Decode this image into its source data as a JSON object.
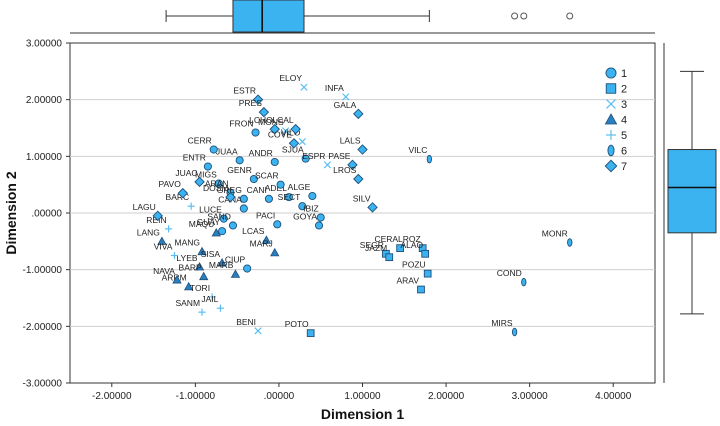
{
  "chart_data": {
    "type": "scatter",
    "title": "",
    "xlabel": "Dimension 1",
    "ylabel": "Dimension 2",
    "xlim": [
      -2.5,
      4.5
    ],
    "ylim": [
      -3.0,
      3.0
    ],
    "x_ticks": [
      -2.0,
      -1.0,
      0.0,
      1.0,
      2.0,
      3.0,
      4.0
    ],
    "y_ticks": [
      -3.0,
      -2.0,
      -1.0,
      0.0,
      1.0,
      2.0,
      3.0
    ],
    "x_tick_labels": [
      "-2.00000",
      "-1.00000",
      ".00000",
      "1.00000",
      "2.00000",
      "3.00000",
      "4.00000"
    ],
    "y_tick_labels": [
      "-3.00000",
      "-2.00000",
      "-1.00000",
      ".00000",
      "1.00000",
      "2.00000",
      "3.00000"
    ],
    "grid": "horizontal",
    "legend_position": "top-right",
    "colors": {
      "fill": "#3bb3f0",
      "stroke": "#1f4f7a",
      "cross": "#5bbef0",
      "plot_bg": "#ffffff",
      "grid": "#cfcfcf",
      "box": "#3bb3f0"
    },
    "series": [
      {
        "name": "1",
        "marker": "circle",
        "points": [
          {
            "label": "FRON",
            "x": -0.28,
            "y": 1.42
          },
          {
            "label": "CERR",
            "x": -0.78,
            "y": 1.12
          },
          {
            "label": "JUAA",
            "x": -0.47,
            "y": 0.93
          },
          {
            "label": "ENTR",
            "x": -0.85,
            "y": 0.82
          },
          {
            "label": "ANDR",
            "x": -0.05,
            "y": 0.9
          },
          {
            "label": "SJUA",
            "x": 0.32,
            "y": 0.96
          },
          {
            "label": "GENR",
            "x": -0.3,
            "y": 0.6
          },
          {
            "label": "MIGS",
            "x": -0.72,
            "y": 0.52
          },
          {
            "label": "ARAN",
            "x": -0.58,
            "y": 0.36
          },
          {
            "label": "GREG",
            "x": -0.42,
            "y": 0.25
          },
          {
            "label": "CANI",
            "x": -0.12,
            "y": 0.25
          },
          {
            "label": "ADEL",
            "x": 0.12,
            "y": 0.28
          },
          {
            "label": "CANA",
            "x": -0.42,
            "y": 0.08
          },
          {
            "label": "SCAR",
            "x": 0.02,
            "y": 0.5
          },
          {
            "label": "ALGE",
            "x": 0.4,
            "y": 0.3
          },
          {
            "label": "SECT",
            "x": 0.28,
            "y": 0.12
          },
          {
            "label": "LUCE",
            "x": -0.66,
            "y": -0.1
          },
          {
            "label": "SAND",
            "x": -0.55,
            "y": -0.22
          },
          {
            "label": "PACI",
            "x": -0.02,
            "y": -0.2
          },
          {
            "label": "IBIZ",
            "x": 0.5,
            "y": -0.08
          },
          {
            "label": "GUAY",
            "x": -0.68,
            "y": -0.32
          },
          {
            "label": "GOYA",
            "x": 0.48,
            "y": -0.22
          },
          {
            "label": "CIUP",
            "x": -0.38,
            "y": -0.98
          }
        ]
      },
      {
        "name": "2",
        "marker": "square",
        "points": [
          {
            "label": "SEGR",
            "x": 1.28,
            "y": -0.72
          },
          {
            "label": "CERA",
            "x": 1.45,
            "y": -0.62
          },
          {
            "label": "JAZM",
            "x": 1.32,
            "y": -0.78
          },
          {
            "label": "LROZ",
            "x": 1.72,
            "y": -0.62
          },
          {
            "label": "ALAO",
            "x": 1.75,
            "y": -0.72
          },
          {
            "label": "POZU",
            "x": 1.78,
            "y": -1.07
          },
          {
            "label": "ARAV",
            "x": 1.7,
            "y": -1.35
          },
          {
            "label": "POTO",
            "x": 0.38,
            "y": -2.12
          }
        ]
      },
      {
        "name": "3",
        "marker": "x",
        "points": [
          {
            "label": "ELOY",
            "x": 0.3,
            "y": 2.22
          },
          {
            "label": "INFA",
            "x": 0.8,
            "y": 2.05
          },
          {
            "label": "MONS",
            "x": 0.08,
            "y": 1.45
          },
          {
            "label": "VILO",
            "x": 0.28,
            "y": 1.26
          },
          {
            "label": "ESPR",
            "x": 0.58,
            "y": 0.85
          },
          {
            "label": "BENI",
            "x": -0.25,
            "y": -2.08
          }
        ]
      },
      {
        "name": "4",
        "marker": "triangle",
        "points": [
          {
            "label": "LANG",
            "x": -1.4,
            "y": -0.5
          },
          {
            "label": "MAQU",
            "x": -0.75,
            "y": -0.35
          },
          {
            "label": "LCAS",
            "x": -0.15,
            "y": -0.48
          },
          {
            "label": "MANG",
            "x": -0.92,
            "y": -0.68
          },
          {
            "label": "MARJ",
            "x": -0.05,
            "y": -0.7
          },
          {
            "label": "LYEB",
            "x": -0.95,
            "y": -0.95
          },
          {
            "label": "SISA",
            "x": -0.68,
            "y": -0.88
          },
          {
            "label": "BARP",
            "x": -0.9,
            "y": -1.12
          },
          {
            "label": "MARB",
            "x": -0.52,
            "y": -1.08
          },
          {
            "label": "ARRM",
            "x": -1.08,
            "y": -1.3
          },
          {
            "label": "NAVA",
            "x": -1.22,
            "y": -1.18
          }
        ]
      },
      {
        "name": "5",
        "marker": "plus",
        "points": [
          {
            "label": "BARC",
            "x": -1.05,
            "y": 0.12
          },
          {
            "label": "REIN",
            "x": -1.32,
            "y": -0.28
          },
          {
            "label": "VIVA",
            "x": -1.25,
            "y": -0.75
          },
          {
            "label": "TORI",
            "x": -0.8,
            "y": -1.48
          },
          {
            "label": "SANM",
            "x": -0.92,
            "y": -1.75
          },
          {
            "label": "JAIL",
            "x": -0.7,
            "y": -1.68
          }
        ]
      },
      {
        "name": "6",
        "marker": "ellipse",
        "points": [
          {
            "label": "VILC",
            "x": 1.8,
            "y": 0.95
          },
          {
            "label": "MONR",
            "x": 3.48,
            "y": -0.52
          },
          {
            "label": "COND",
            "x": 2.93,
            "y": -1.22
          },
          {
            "label": "MIRS",
            "x": 2.82,
            "y": -2.1
          }
        ]
      },
      {
        "name": "7",
        "marker": "diamond",
        "points": [
          {
            "label": "ESTR",
            "x": -0.25,
            "y": 2.0
          },
          {
            "label": "PRES",
            "x": -0.18,
            "y": 1.78
          },
          {
            "label": "LCHO",
            "x": -0.05,
            "y": 1.48
          },
          {
            "label": "LCAL",
            "x": 0.2,
            "y": 1.48
          },
          {
            "label": "GALA",
            "x": 0.95,
            "y": 1.75
          },
          {
            "label": "COVE",
            "x": 0.18,
            "y": 1.23
          },
          {
            "label": "LALS",
            "x": 1.0,
            "y": 1.12
          },
          {
            "label": "PASE",
            "x": 0.88,
            "y": 0.85
          },
          {
            "label": "LROS",
            "x": 0.95,
            "y": 0.6
          },
          {
            "label": "SILV",
            "x": 1.12,
            "y": 0.1
          },
          {
            "label": "DOSM",
            "x": -0.58,
            "y": 0.28
          },
          {
            "label": "JUAC",
            "x": -0.95,
            "y": 0.55
          },
          {
            "label": "PAVO",
            "x": -1.15,
            "y": 0.35
          },
          {
            "label": "LAGU",
            "x": -1.45,
            "y": -0.05
          }
        ]
      }
    ],
    "boxplot_x": {
      "min": -1.35,
      "q1": -0.55,
      "median": -0.2,
      "q3": 0.3,
      "max": 1.8,
      "outliers": [
        2.82,
        2.93,
        3.48
      ]
    },
    "boxplot_y": {
      "min": -1.78,
      "q1": -0.35,
      "median": 0.45,
      "q3": 1.12,
      "max": 2.5
    }
  }
}
